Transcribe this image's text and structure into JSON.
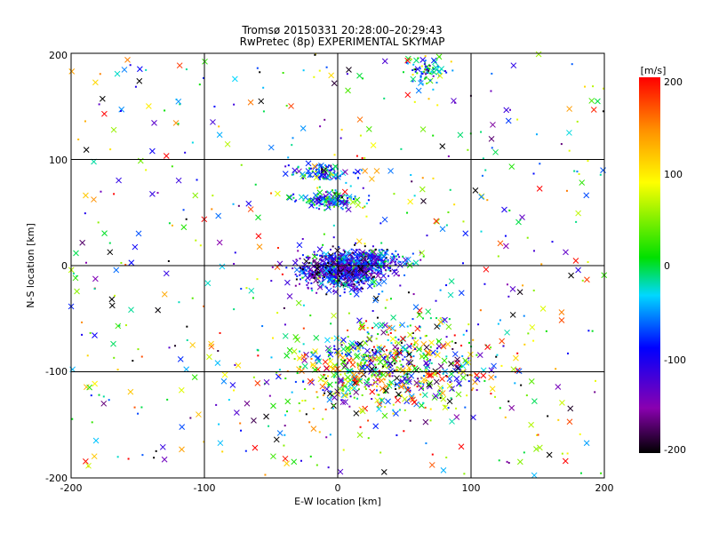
{
  "chart_data": {
    "type": "scatter",
    "title": "Tromsø 20150331 20:28:00–20:29:43",
    "subtitle": "RwPretec (8p) EXPERIMENTAL SKYMAP",
    "xlabel": "E-W location [km]",
    "ylabel": "N-S location [km]",
    "xlim": [
      -200,
      200
    ],
    "ylim": [
      -200,
      200
    ],
    "xticks": [
      "-200",
      "-100",
      "0",
      "100",
      "200"
    ],
    "yticks": [
      "-200",
      "-100",
      "0",
      "100",
      "200"
    ],
    "grid": true,
    "colorbar": {
      "label": "[m/s]",
      "range": [
        -200,
        200
      ],
      "ticks": [
        "200",
        "100",
        "0",
        "-100",
        "-200"
      ],
      "colormap": [
        "#000000",
        "#8a00b0",
        "#0000ff",
        "#00d8ff",
        "#00e000",
        "#ffff00",
        "#ff9000",
        "#ff0000"
      ]
    },
    "marker_types": [
      "dot",
      "x"
    ],
    "clusters": [
      {
        "region": "core near origin",
        "center": [
          5,
          -5
        ],
        "spread": [
          28,
          14
        ],
        "count": 700,
        "velocity_bias": -120
      },
      {
        "region": "blue band above core",
        "center": [
          20,
          5
        ],
        "spread": [
          25,
          8
        ],
        "count": 220,
        "velocity_bias": -80
      },
      {
        "region": "cyan cluster 60-70 km N",
        "center": [
          -5,
          62
        ],
        "spread": [
          18,
          6
        ],
        "count": 160,
        "velocity_bias": -50
      },
      {
        "region": "cyan cluster 75-95 km N",
        "center": [
          -10,
          88
        ],
        "spread": [
          18,
          6
        ],
        "count": 120,
        "velocity_bias": -60
      },
      {
        "region": "cyan cluster NE top",
        "center": [
          65,
          185
        ],
        "spread": [
          12,
          10
        ],
        "count": 80,
        "velocity_bias": -45
      },
      {
        "region": "southern spread",
        "center": [
          40,
          -95
        ],
        "spread": [
          60,
          35
        ],
        "count": 700,
        "velocity_bias": 0
      },
      {
        "region": "background",
        "center": [
          0,
          0
        ],
        "spread": [
          200,
          200
        ],
        "count": 600,
        "velocity_bias": 0
      }
    ]
  }
}
